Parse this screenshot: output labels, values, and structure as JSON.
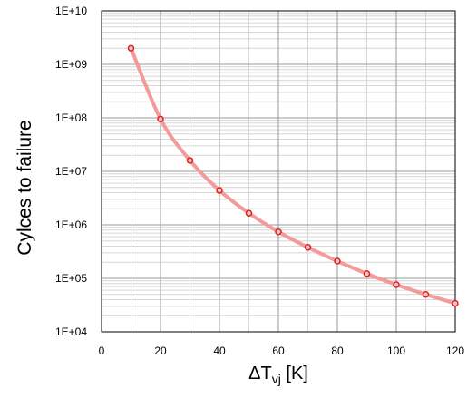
{
  "chart_data": {
    "type": "line",
    "title": "",
    "xlabel": {
      "delta": "Δ",
      "main": "T",
      "sub": "vj",
      "unit": " [K]"
    },
    "ylabel": "Cylces to failure",
    "xlim": [
      0,
      120
    ],
    "ylim": [
      10000,
      10000000000
    ],
    "yscale": "log",
    "x_ticks": [
      "0",
      "20",
      "40",
      "60",
      "80",
      "100",
      "120"
    ],
    "y_ticks": [
      "1E+04",
      "1E+05",
      "1E+06",
      "1E+07",
      "1E+08",
      "1E+09",
      "1E+10"
    ],
    "grid": true,
    "legend": "none",
    "colors": {
      "line": "#f39a9a",
      "marker_edge": "#e0201c",
      "marker_fill": "#f7c7c7",
      "major_grid": "#9a9a9a",
      "minor_grid": "#d6d6d6",
      "axis": "#000000"
    },
    "series": [
      {
        "x": [
          10,
          20,
          30,
          40,
          50,
          60,
          70,
          80,
          90,
          100,
          110,
          120
        ],
        "y": [
          2000000000,
          95000000,
          16000000,
          4400000,
          1650000,
          740000,
          380000,
          210000,
          122000,
          76000,
          50000,
          34000
        ]
      }
    ]
  }
}
